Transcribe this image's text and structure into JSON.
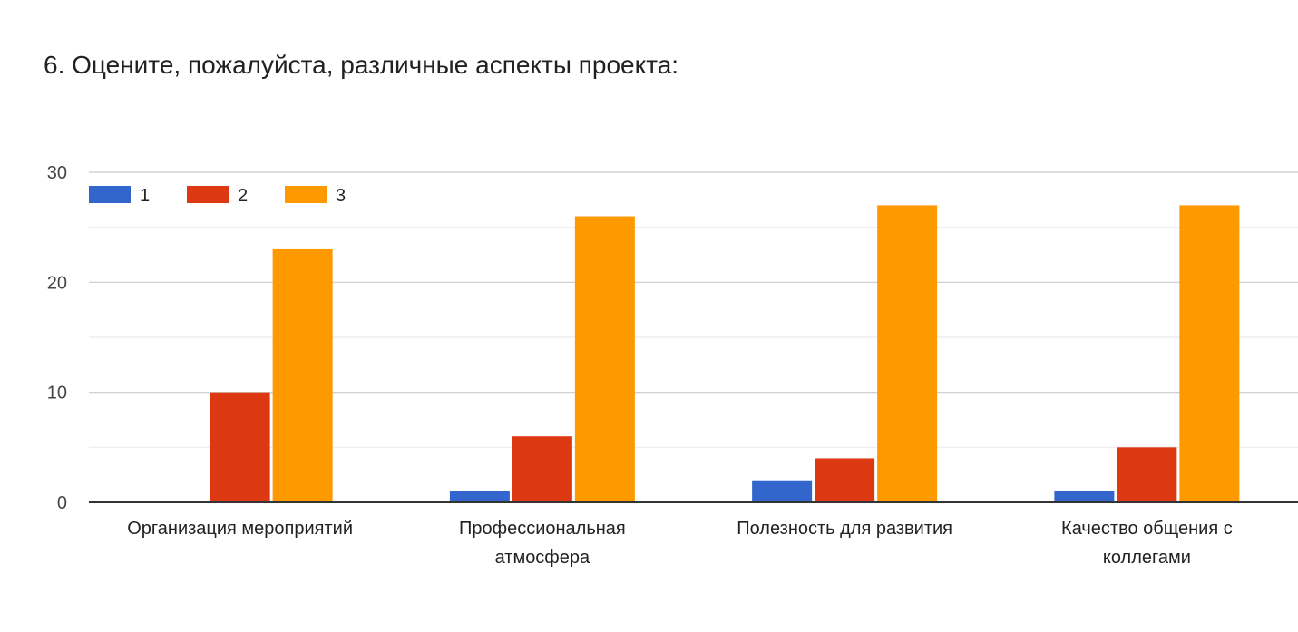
{
  "title": "6. Оцените, пожалуйста, различные аспекты проекта:",
  "chart_data": {
    "type": "bar",
    "categories": [
      [
        "Организация мероприятий"
      ],
      [
        "Профессиональная",
        "атмосфера"
      ],
      [
        "Полезность для развития"
      ],
      [
        "Качество общения с",
        "коллегами"
      ]
    ],
    "series": [
      {
        "name": "1",
        "color": "#3366cc",
        "values": [
          0,
          1,
          2,
          1
        ]
      },
      {
        "name": "2",
        "color": "#dc3912",
        "values": [
          10,
          6,
          4,
          5
        ]
      },
      {
        "name": "3",
        "color": "#ff9900",
        "values": [
          23,
          26,
          27,
          27
        ]
      }
    ],
    "ylim": [
      0,
      30
    ],
    "yticks": [
      0,
      10,
      20,
      30
    ],
    "grid": true,
    "legend": "top-left"
  }
}
